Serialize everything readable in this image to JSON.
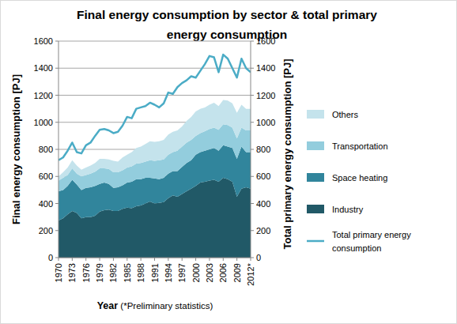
{
  "chart_data": {
    "type": "area",
    "title": "Final energy consumption by sector & total primary energy consumption",
    "x_label": "Year (*Preliminary statistics)",
    "y_label": "Final energy consumption [PJ]",
    "y2_label": "Total primary energy consumption [PJ]",
    "stacked": true,
    "grid": true,
    "legend": "right",
    "categories": [
      "1970",
      null,
      null,
      "1973",
      null,
      null,
      "1976",
      null,
      null,
      "1979",
      null,
      null,
      "1982",
      null,
      null,
      "1985",
      null,
      null,
      "1988",
      null,
      null,
      "1991",
      null,
      null,
      "1994",
      null,
      null,
      "1997",
      null,
      null,
      "2000",
      null,
      null,
      "2003",
      null,
      null,
      "2006",
      null,
      null,
      "2009",
      null,
      null,
      "2012*"
    ],
    "ylim": [
      0,
      1600
    ],
    "yticks": [
      0,
      200,
      400,
      600,
      800,
      1000,
      1200,
      1400,
      1600
    ],
    "y2lim": [
      0,
      1600
    ],
    "y2ticks": [
      0,
      200,
      400,
      600,
      800,
      1000,
      1200,
      1400,
      1600
    ],
    "series": [
      {
        "name": "Industry",
        "type": "area",
        "color": "#215967",
        "values": [
          275,
          290,
          320,
          345,
          330,
          290,
          300,
          300,
          310,
          340,
          350,
          355,
          345,
          345,
          360,
          370,
          365,
          380,
          385,
          400,
          415,
          400,
          405,
          410,
          440,
          460,
          450,
          470,
          490,
          510,
          530,
          555,
          560,
          570,
          575,
          560,
          590,
          580,
          560,
          450,
          510,
          520,
          510
        ]
      },
      {
        "name": "Space heating",
        "type": "area",
        "color": "#31859c",
        "values": [
          215,
          210,
          210,
          230,
          210,
          210,
          215,
          220,
          220,
          205,
          205,
          190,
          170,
          175,
          175,
          185,
          195,
          200,
          195,
          190,
          175,
          185,
          175,
          180,
          180,
          180,
          190,
          200,
          210,
          210,
          230,
          225,
          230,
          230,
          235,
          230,
          240,
          240,
          250,
          280,
          310,
          260,
          270
        ]
      },
      {
        "name": "Transportation",
        "type": "area",
        "color": "#93cddd",
        "values": [
          80,
          90,
          80,
          85,
          80,
          100,
          95,
          100,
          105,
          115,
          105,
          110,
          115,
          110,
          110,
          110,
          115,
          115,
          120,
          120,
          130,
          130,
          140,
          135,
          140,
          140,
          150,
          150,
          150,
          150,
          140,
          140,
          145,
          150,
          150,
          155,
          155,
          160,
          150,
          150,
          140,
          160,
          160
        ]
      },
      {
        "name": "Others",
        "type": "area",
        "color": "#c4e3ec",
        "values": [
          30,
          40,
          55,
          60,
          60,
          50,
          55,
          60,
          65,
          70,
          70,
          70,
          85,
          80,
          95,
          95,
          105,
          115,
          120,
          130,
          140,
          140,
          140,
          145,
          150,
          150,
          150,
          150,
          160,
          170,
          180,
          180,
          175,
          180,
          185,
          175,
          180,
          180,
          180,
          190,
          170,
          160,
          160
        ]
      },
      {
        "name": "Total primary energy consumption",
        "type": "line",
        "axis": "y2",
        "color": "#4bacc6",
        "values": [
          720,
          740,
          790,
          850,
          780,
          770,
          830,
          850,
          900,
          945,
          950,
          940,
          920,
          930,
          975,
          1040,
          1030,
          1100,
          1110,
          1120,
          1145,
          1130,
          1110,
          1140,
          1220,
          1210,
          1260,
          1290,
          1310,
          1340,
          1330,
          1380,
          1430,
          1490,
          1480,
          1370,
          1500,
          1470,
          1400,
          1330,
          1470,
          1400,
          1370
        ]
      }
    ]
  }
}
